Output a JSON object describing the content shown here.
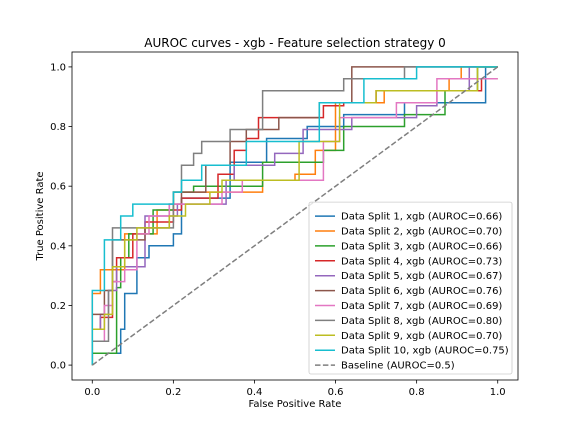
{
  "chart_data": {
    "type": "line",
    "title": "AUROC curves - xgb - Feature selection strategy 0",
    "xlabel": "False Positive Rate",
    "ylabel": "True Positive Rate",
    "xlim": [
      -0.05,
      1.05
    ],
    "ylim": [
      -0.05,
      1.05
    ],
    "xticks": [
      "0.0",
      "0.2",
      "0.4",
      "0.6",
      "0.8",
      "1.0"
    ],
    "yticks": [
      "0.0",
      "0.2",
      "0.4",
      "0.6",
      "0.8",
      "1.0"
    ],
    "grid": false,
    "legend_position": "lower-right",
    "series": [
      {
        "name": "Data Split 1, xgb (AUROC=0.66)",
        "color": "#1f77b4",
        "dashed": false,
        "points": [
          [
            0,
            0
          ],
          [
            0,
            0.04
          ],
          [
            0.07,
            0.04
          ],
          [
            0.07,
            0.12
          ],
          [
            0.08,
            0.12
          ],
          [
            0.08,
            0.24
          ],
          [
            0.11,
            0.24
          ],
          [
            0.11,
            0.36
          ],
          [
            0.14,
            0.36
          ],
          [
            0.14,
            0.4
          ],
          [
            0.2,
            0.4
          ],
          [
            0.2,
            0.44
          ],
          [
            0.22,
            0.44
          ],
          [
            0.22,
            0.56
          ],
          [
            0.34,
            0.56
          ],
          [
            0.34,
            0.68
          ],
          [
            0.43,
            0.68
          ],
          [
            0.43,
            0.76
          ],
          [
            0.53,
            0.76
          ],
          [
            0.53,
            0.8
          ],
          [
            0.62,
            0.8
          ],
          [
            0.62,
            0.84
          ],
          [
            0.77,
            0.84
          ],
          [
            0.77,
            0.88
          ],
          [
            0.97,
            0.88
          ],
          [
            0.97,
            1.0
          ],
          [
            1.0,
            1.0
          ]
        ]
      },
      {
        "name": "Data Split 2, xgb (AUROC=0.70)",
        "color": "#ff7f0e",
        "dashed": false,
        "points": [
          [
            0,
            0.04
          ],
          [
            0,
            0.24
          ],
          [
            0.02,
            0.24
          ],
          [
            0.02,
            0.32
          ],
          [
            0.08,
            0.32
          ],
          [
            0.08,
            0.44
          ],
          [
            0.16,
            0.44
          ],
          [
            0.16,
            0.52
          ],
          [
            0.2,
            0.52
          ],
          [
            0.2,
            0.58
          ],
          [
            0.42,
            0.58
          ],
          [
            0.42,
            0.62
          ],
          [
            0.5,
            0.62
          ],
          [
            0.5,
            0.64
          ],
          [
            0.55,
            0.64
          ],
          [
            0.55,
            0.72
          ],
          [
            0.6,
            0.72
          ],
          [
            0.6,
            0.88
          ],
          [
            0.72,
            0.88
          ],
          [
            0.72,
            0.92
          ],
          [
            0.88,
            0.92
          ],
          [
            0.88,
            0.96
          ],
          [
            0.91,
            0.96
          ],
          [
            0.91,
            1.0
          ],
          [
            1.0,
            1.0
          ]
        ]
      },
      {
        "name": "Data Split 3, xgb (AUROC=0.66)",
        "color": "#2ca02c",
        "dashed": false,
        "points": [
          [
            0,
            0
          ],
          [
            0,
            0.04
          ],
          [
            0.06,
            0.04
          ],
          [
            0.06,
            0.26
          ],
          [
            0.07,
            0.26
          ],
          [
            0.07,
            0.36
          ],
          [
            0.09,
            0.36
          ],
          [
            0.09,
            0.44
          ],
          [
            0.15,
            0.44
          ],
          [
            0.15,
            0.52
          ],
          [
            0.2,
            0.52
          ],
          [
            0.2,
            0.58
          ],
          [
            0.25,
            0.58
          ],
          [
            0.25,
            0.6
          ],
          [
            0.42,
            0.6
          ],
          [
            0.42,
            0.68
          ],
          [
            0.57,
            0.68
          ],
          [
            0.57,
            0.72
          ],
          [
            0.62,
            0.72
          ],
          [
            0.62,
            0.8
          ],
          [
            0.77,
            0.8
          ],
          [
            0.77,
            0.84
          ],
          [
            0.87,
            0.84
          ],
          [
            0.87,
            0.92
          ],
          [
            0.95,
            0.92
          ],
          [
            0.95,
            1.0
          ],
          [
            1.0,
            1.0
          ]
        ]
      },
      {
        "name": "Data Split 4, xgb (AUROC=0.73)",
        "color": "#d62728",
        "dashed": false,
        "points": [
          [
            0,
            0.12
          ],
          [
            0.02,
            0.12
          ],
          [
            0.02,
            0.16
          ],
          [
            0.05,
            0.16
          ],
          [
            0.05,
            0.28
          ],
          [
            0.06,
            0.28
          ],
          [
            0.06,
            0.36
          ],
          [
            0.1,
            0.36
          ],
          [
            0.1,
            0.44
          ],
          [
            0.13,
            0.44
          ],
          [
            0.13,
            0.48
          ],
          [
            0.2,
            0.48
          ],
          [
            0.2,
            0.52
          ],
          [
            0.22,
            0.52
          ],
          [
            0.22,
            0.56
          ],
          [
            0.31,
            0.56
          ],
          [
            0.31,
            0.64
          ],
          [
            0.35,
            0.64
          ],
          [
            0.35,
            0.72
          ],
          [
            0.38,
            0.72
          ],
          [
            0.38,
            0.76
          ],
          [
            0.41,
            0.76
          ],
          [
            0.41,
            0.83
          ],
          [
            0.57,
            0.83
          ],
          [
            0.57,
            0.87
          ],
          [
            0.62,
            0.87
          ],
          [
            0.62,
            0.88
          ],
          [
            0.7,
            0.88
          ],
          [
            0.7,
            0.92
          ],
          [
            0.96,
            0.92
          ],
          [
            0.96,
            0.96
          ],
          [
            1.0,
            0.96
          ]
        ]
      },
      {
        "name": "Data Split 5, xgb (AUROC=0.67)",
        "color": "#9467bd",
        "dashed": false,
        "points": [
          [
            0,
            0.12
          ],
          [
            0.02,
            0.12
          ],
          [
            0.02,
            0.17
          ],
          [
            0.04,
            0.17
          ],
          [
            0.04,
            0.25
          ],
          [
            0.06,
            0.25
          ],
          [
            0.06,
            0.33
          ],
          [
            0.13,
            0.33
          ],
          [
            0.13,
            0.5
          ],
          [
            0.21,
            0.5
          ],
          [
            0.21,
            0.54
          ],
          [
            0.33,
            0.54
          ],
          [
            0.33,
            0.62
          ],
          [
            0.35,
            0.62
          ],
          [
            0.35,
            0.67
          ],
          [
            0.45,
            0.67
          ],
          [
            0.45,
            0.71
          ],
          [
            0.52,
            0.71
          ],
          [
            0.52,
            0.79
          ],
          [
            0.64,
            0.79
          ],
          [
            0.64,
            0.83
          ],
          [
            0.8,
            0.83
          ],
          [
            0.8,
            0.87
          ],
          [
            0.85,
            0.87
          ],
          [
            0.85,
            0.92
          ],
          [
            0.93,
            0.92
          ],
          [
            0.93,
            1.0
          ],
          [
            1.0,
            1.0
          ]
        ]
      },
      {
        "name": "Data Split 6, xgb (AUROC=0.76)",
        "color": "#8c564b",
        "dashed": false,
        "points": [
          [
            0,
            0.17
          ],
          [
            0.03,
            0.17
          ],
          [
            0.03,
            0.25
          ],
          [
            0.05,
            0.25
          ],
          [
            0.05,
            0.42
          ],
          [
            0.13,
            0.42
          ],
          [
            0.13,
            0.46
          ],
          [
            0.19,
            0.46
          ],
          [
            0.19,
            0.54
          ],
          [
            0.22,
            0.54
          ],
          [
            0.22,
            0.58
          ],
          [
            0.28,
            0.58
          ],
          [
            0.28,
            0.67
          ],
          [
            0.34,
            0.67
          ],
          [
            0.34,
            0.75
          ],
          [
            0.38,
            0.75
          ],
          [
            0.38,
            0.79
          ],
          [
            0.46,
            0.79
          ],
          [
            0.46,
            0.83
          ],
          [
            0.56,
            0.83
          ],
          [
            0.56,
            0.88
          ],
          [
            0.64,
            0.88
          ],
          [
            0.64,
            1.0
          ],
          [
            1.0,
            1.0
          ]
        ]
      },
      {
        "name": "Data Split 7, xgb (AUROC=0.69)",
        "color": "#e377c2",
        "dashed": false,
        "points": [
          [
            0,
            0.08
          ],
          [
            0.03,
            0.08
          ],
          [
            0.03,
            0.2
          ],
          [
            0.05,
            0.2
          ],
          [
            0.05,
            0.28
          ],
          [
            0.08,
            0.28
          ],
          [
            0.08,
            0.32
          ],
          [
            0.11,
            0.32
          ],
          [
            0.11,
            0.44
          ],
          [
            0.14,
            0.44
          ],
          [
            0.14,
            0.5
          ],
          [
            0.19,
            0.5
          ],
          [
            0.19,
            0.54
          ],
          [
            0.32,
            0.54
          ],
          [
            0.32,
            0.58
          ],
          [
            0.37,
            0.58
          ],
          [
            0.37,
            0.62
          ],
          [
            0.57,
            0.62
          ],
          [
            0.57,
            0.75
          ],
          [
            0.61,
            0.75
          ],
          [
            0.61,
            0.83
          ],
          [
            0.75,
            0.83
          ],
          [
            0.75,
            0.88
          ],
          [
            0.85,
            0.88
          ],
          [
            0.85,
            0.96
          ],
          [
            1.0,
            0.96
          ]
        ]
      },
      {
        "name": "Data Split 8, xgb (AUROC=0.80)",
        "color": "#7f7f7f",
        "dashed": false,
        "points": [
          [
            0,
            0.0
          ],
          [
            0,
            0.08
          ],
          [
            0.04,
            0.08
          ],
          [
            0.04,
            0.25
          ],
          [
            0.05,
            0.25
          ],
          [
            0.05,
            0.46
          ],
          [
            0.2,
            0.46
          ],
          [
            0.2,
            0.58
          ],
          [
            0.22,
            0.58
          ],
          [
            0.22,
            0.67
          ],
          [
            0.25,
            0.67
          ],
          [
            0.25,
            0.71
          ],
          [
            0.27,
            0.71
          ],
          [
            0.27,
            0.75
          ],
          [
            0.34,
            0.75
          ],
          [
            0.34,
            0.79
          ],
          [
            0.42,
            0.79
          ],
          [
            0.42,
            0.92
          ],
          [
            0.62,
            0.92
          ],
          [
            0.62,
            0.96
          ],
          [
            0.77,
            0.96
          ],
          [
            0.77,
            1.0
          ],
          [
            1.0,
            1.0
          ]
        ]
      },
      {
        "name": "Data Split 9, xgb (AUROC=0.70)",
        "color": "#bcbd22",
        "dashed": false,
        "points": [
          [
            0,
            0.0
          ],
          [
            0,
            0.12
          ],
          [
            0.03,
            0.12
          ],
          [
            0.03,
            0.17
          ],
          [
            0.05,
            0.17
          ],
          [
            0.05,
            0.33
          ],
          [
            0.08,
            0.33
          ],
          [
            0.08,
            0.42
          ],
          [
            0.11,
            0.42
          ],
          [
            0.11,
            0.46
          ],
          [
            0.19,
            0.46
          ],
          [
            0.19,
            0.5
          ],
          [
            0.23,
            0.5
          ],
          [
            0.23,
            0.54
          ],
          [
            0.29,
            0.54
          ],
          [
            0.29,
            0.58
          ],
          [
            0.32,
            0.58
          ],
          [
            0.32,
            0.62
          ],
          [
            0.51,
            0.62
          ],
          [
            0.51,
            0.75
          ],
          [
            0.61,
            0.75
          ],
          [
            0.61,
            0.88
          ],
          [
            0.7,
            0.88
          ],
          [
            0.7,
            0.92
          ],
          [
            0.95,
            0.92
          ],
          [
            0.95,
            1.0
          ],
          [
            1.0,
            1.0
          ]
        ]
      },
      {
        "name": "Data Split 10, xgb (AUROC=0.75)",
        "color": "#17becf",
        "dashed": false,
        "points": [
          [
            0,
            0.0
          ],
          [
            0,
            0.25
          ],
          [
            0.03,
            0.25
          ],
          [
            0.03,
            0.42
          ],
          [
            0.07,
            0.42
          ],
          [
            0.07,
            0.5
          ],
          [
            0.1,
            0.5
          ],
          [
            0.1,
            0.54
          ],
          [
            0.2,
            0.54
          ],
          [
            0.2,
            0.58
          ],
          [
            0.22,
            0.58
          ],
          [
            0.22,
            0.62
          ],
          [
            0.27,
            0.62
          ],
          [
            0.27,
            0.67
          ],
          [
            0.38,
            0.67
          ],
          [
            0.38,
            0.75
          ],
          [
            0.56,
            0.75
          ],
          [
            0.56,
            0.88
          ],
          [
            0.67,
            0.88
          ],
          [
            0.67,
            0.96
          ],
          [
            0.8,
            0.96
          ],
          [
            0.8,
            1.0
          ],
          [
            1.0,
            1.0
          ]
        ]
      },
      {
        "name": "Baseline (AUROC=0.5)",
        "color": "#7f7f7f",
        "dashed": true,
        "points": [
          [
            0,
            0
          ],
          [
            1,
            1
          ]
        ]
      }
    ]
  }
}
